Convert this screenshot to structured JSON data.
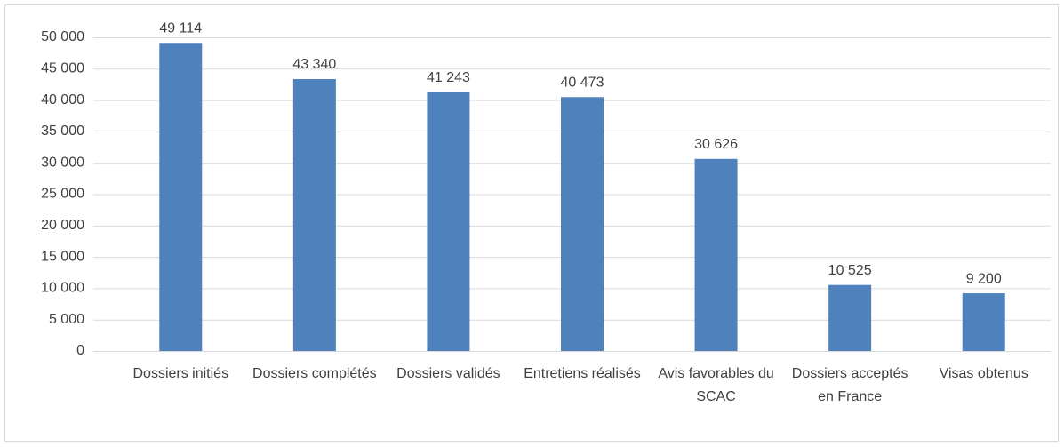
{
  "chart_data": {
    "type": "bar",
    "categories": [
      "Dossiers initiés",
      "Dossiers complétés",
      "Dossiers validés",
      "Entretiens réalisés",
      "Avis favorables du SCAC",
      "Dossiers acceptés en France",
      "Visas obtenus"
    ],
    "values": [
      49114,
      43340,
      41243,
      40473,
      30626,
      10525,
      9200
    ],
    "value_labels": [
      "49 114",
      "43 340",
      "41 243",
      "40 473",
      "30 626",
      "10 525",
      "9 200"
    ],
    "color": "#4f81bd",
    "ylim": [
      0,
      50000
    ],
    "yticks": [
      0,
      {
        "value": 5000,
        "label": "5 000"
      },
      {
        "value": 10000,
        "label": "10 000"
      },
      {
        "value": 15000,
        "label": "15 000"
      },
      {
        "value": 20000,
        "label": "20 000"
      },
      {
        "value": 25000,
        "label": "25 000"
      },
      {
        "value": 30000,
        "label": "30 000"
      },
      {
        "value": 35000,
        "label": "35 000"
      },
      {
        "value": 40000,
        "label": "40 000"
      },
      {
        "value": 45000,
        "label": "45 000"
      },
      {
        "value": 50000,
        "label": "50 000"
      }
    ],
    "grid": true
  }
}
